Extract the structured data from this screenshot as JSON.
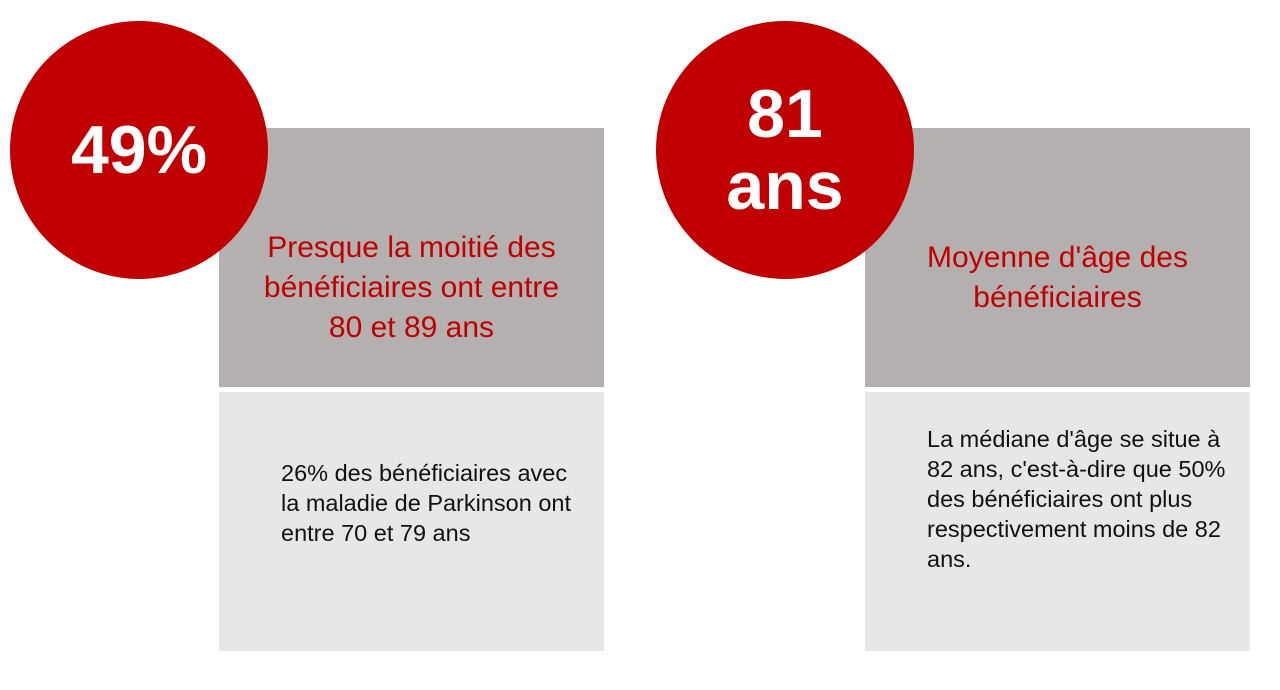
{
  "cards": [
    {
      "stat": "49%",
      "headline": "Presque la moitié des bénéficiaires ont entre 80 et 89 ans",
      "detail": "26% des bénéficiaires avec la maladie de Parkinson ont entre 70 et 79 ans"
    },
    {
      "stat_line1": "81",
      "stat_line2": "ans",
      "headline": "Moyenne d'âge des bénéficiaires",
      "detail": "La médiane d'âge se situe à 82 ans, c'est-à-dire que 50% des bénéficiaires ont plus respectivement moins de 82 ans."
    }
  ],
  "colors": {
    "accent": "#c00000",
    "card_top": "#b4b0af",
    "card_bottom": "#e7e7e7",
    "stat_text": "#ffffff"
  }
}
